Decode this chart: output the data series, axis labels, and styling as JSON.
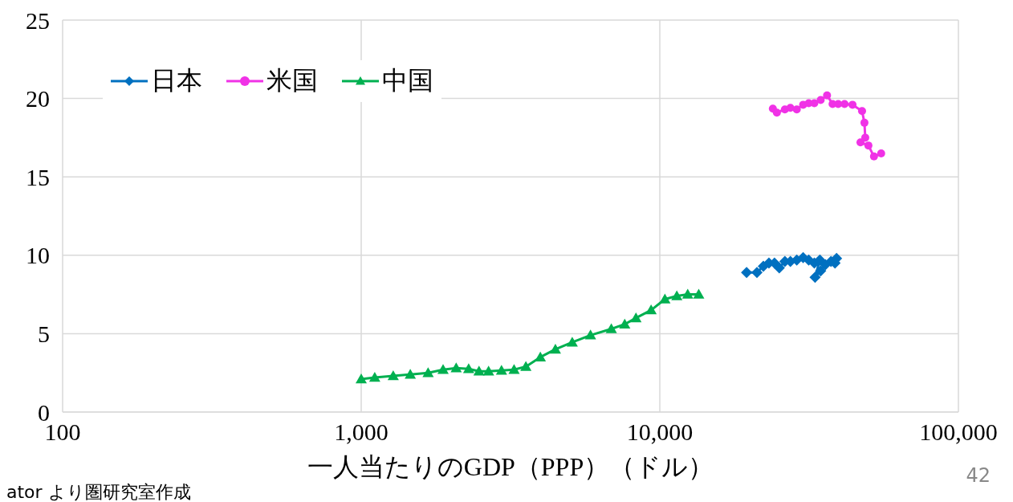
{
  "chart_data": {
    "type": "line",
    "xlabel": "一人当たりのGDP（PPP）（ドル）",
    "annotations": [
      "ator より圏研究室作成",
      "42"
    ],
    "log": "x",
    "grid": true,
    "legend": "top left",
    "line_style": "solid",
    "xlim": [
      100,
      100000
    ],
    "xticks": [
      {
        "value": 100,
        "label": "100"
      },
      {
        "value": 1000,
        "label": "1,000"
      },
      {
        "value": 10000,
        "label": "10,000"
      },
      {
        "value": 100000,
        "label": "100,000"
      }
    ],
    "ylim": [
      0,
      25
    ],
    "yticks": [
      0,
      5,
      10,
      15,
      20,
      25
    ],
    "series": [
      {
        "name": "日本",
        "color": "#0070c0",
        "marker": "diamond",
        "x": [
          19530,
          21150,
          22220,
          23200,
          24210,
          25120,
          26230,
          27370,
          28750,
          30200,
          31530,
          32920,
          34360,
          33110,
          34570,
          35860,
          37440,
          39080,
          38610
        ],
        "values": [
          8.9,
          8.9,
          9.3,
          9.5,
          9.5,
          9.2,
          9.6,
          9.6,
          9.7,
          9.85,
          9.7,
          9.5,
          9.7,
          8.6,
          9.0,
          9.4,
          9.6,
          9.8,
          9.5
        ]
      },
      {
        "name": "米国",
        "color": "#f032e6",
        "marker": "circle",
        "x": [
          23910,
          24660,
          26230,
          27370,
          28750,
          30200,
          31530,
          32920,
          34570,
          36310,
          37900,
          39570,
          41560,
          44190,
          47570,
          48450,
          48750,
          46990,
          49950,
          52150,
          55120
        ],
        "values": [
          19.35,
          19.1,
          19.3,
          19.4,
          19.3,
          19.6,
          19.7,
          19.7,
          19.9,
          20.2,
          19.65,
          19.65,
          19.65,
          19.6,
          19.2,
          18.45,
          17.5,
          17.2,
          17.0,
          16.3,
          16.5
        ]
      },
      {
        "name": "中国",
        "color": "#00b050",
        "marker": "triangle",
        "x": [
          1000,
          1110,
          1280,
          1460,
          1675,
          1880,
          2080,
          2290,
          2480,
          2670,
          2950,
          3250,
          3560,
          3980,
          4470,
          5090,
          5860,
          6880,
          7630,
          8320,
          9350,
          10400,
          11400,
          12400,
          13500
        ],
        "values": [
          2.1,
          2.2,
          2.3,
          2.4,
          2.5,
          2.7,
          2.8,
          2.75,
          2.6,
          2.6,
          2.65,
          2.7,
          2.9,
          3.5,
          4.0,
          4.45,
          4.9,
          5.3,
          5.6,
          6.0,
          6.5,
          7.2,
          7.4,
          7.5,
          7.5
        ]
      }
    ]
  }
}
